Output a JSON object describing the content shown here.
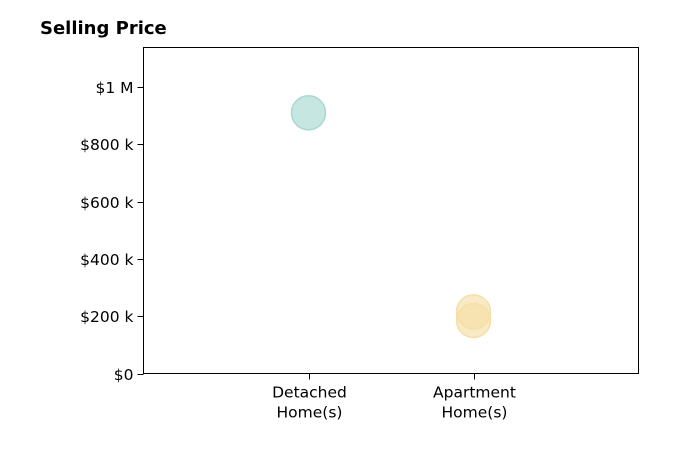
{
  "chart_data": {
    "type": "scatter",
    "title": "Selling Price",
    "xlabel": "",
    "ylabel": "",
    "categories": [
      [
        "Detached",
        "Home(s)"
      ],
      [
        "Apartment",
        "Home(s)"
      ]
    ],
    "xlim": [
      0,
      3
    ],
    "ylim": [
      0,
      1000000
    ],
    "y_ticks": [
      0,
      200000,
      400000,
      600000,
      800000,
      1000000
    ],
    "y_tick_labels": [
      "$0",
      "$200 k",
      "$400 k",
      "$600 k",
      "$800 k",
      "$1 M"
    ],
    "grid": false,
    "series": [
      {
        "category_index": 0,
        "color": "#a8d8d2",
        "values": [
          910000
        ]
      },
      {
        "category_index": 1,
        "color": "#f5dfa6",
        "values": [
          215000,
          185000
        ]
      }
    ]
  }
}
